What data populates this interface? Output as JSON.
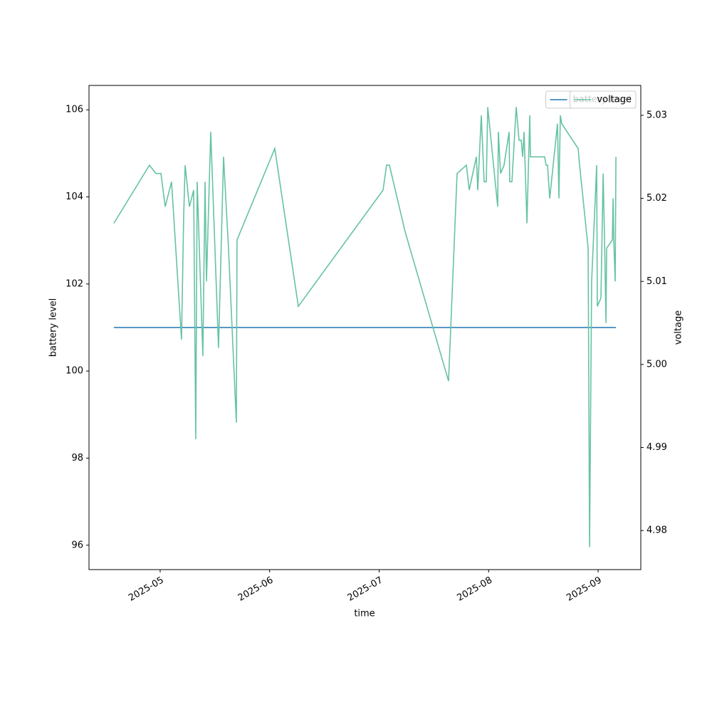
{
  "chart_data": {
    "type": "line",
    "x_label": "time",
    "y_label": "battery level",
    "y2_label": "voltage",
    "x": [
      4.577,
      4.902,
      4.961,
      5.007,
      5.046,
      5.104,
      5.195,
      5.215,
      5.228,
      5.267,
      5.306,
      5.325,
      5.338,
      5.39,
      5.41,
      5.423,
      5.462,
      5.533,
      5.579,
      5.624,
      5.696,
      5.702,
      6.047,
      6.262,
      7.036,
      7.068,
      7.094,
      7.237,
      7.634,
      7.712,
      7.797,
      7.823,
      7.888,
      7.901,
      7.933,
      7.959,
      7.979,
      7.992,
      8.083,
      8.089,
      8.109,
      8.141,
      8.187,
      8.193,
      8.213,
      8.252,
      8.278,
      8.298,
      8.311,
      8.324,
      8.35,
      8.376,
      8.382,
      8.512,
      8.525,
      8.538,
      8.558,
      8.629,
      8.642,
      8.655,
      8.668,
      8.818,
      8.831,
      8.909,
      8.922,
      8.941,
      8.987,
      8.993,
      9.026,
      9.046,
      9.059,
      9.072,
      9.078,
      9.13,
      9.137,
      9.143,
      9.156,
      9.163
    ],
    "xlim": [
      4.35,
      9.39
    ],
    "xticks": [
      {
        "value": 5,
        "label": "2025-05"
      },
      {
        "value": 6,
        "label": "2025-06"
      },
      {
        "value": 7,
        "label": "2025-07"
      },
      {
        "value": 8,
        "label": "2025-08"
      },
      {
        "value": 9,
        "label": "2025-09"
      }
    ],
    "ylim": [
      95.44,
      106.56
    ],
    "yticks": [
      96,
      98,
      100,
      102,
      104,
      106
    ],
    "y2lim": [
      4.9753,
      5.0336
    ],
    "y2ticks": [
      4.98,
      4.99,
      {
        "value": 5.0,
        "label": "5.00"
      },
      5.01,
      5.02,
      5.03
    ],
    "legend": "upper right",
    "series": [
      {
        "name": "battery level",
        "color": "#1f77b4",
        "values": [
          101,
          101,
          101,
          101,
          101,
          101,
          101,
          101,
          101,
          101,
          101,
          101,
          101,
          101,
          101,
          101,
          101,
          101,
          101,
          101,
          101,
          101,
          101,
          101,
          101,
          101,
          101,
          101,
          101,
          101,
          101,
          101,
          101,
          101,
          101,
          101,
          101,
          101,
          101,
          101,
          101,
          101,
          101,
          101,
          101,
          101,
          101,
          101,
          101,
          101,
          101,
          101,
          101,
          101,
          101,
          101,
          101,
          101,
          101,
          101,
          101,
          101,
          101,
          101,
          101,
          101,
          101,
          101,
          101,
          101,
          101,
          101,
          101,
          101,
          101,
          101,
          101,
          101
        ]
      },
      {
        "name": "voltage",
        "color": "#66c2a5",
        "axis": "y2",
        "values": [
          5.017,
          5.024,
          5.023,
          5.023,
          5.019,
          5.022,
          5.003,
          5.018,
          5.024,
          5.019,
          5.021,
          4.991,
          5.022,
          5.001,
          5.022,
          5.01,
          5.028,
          5.002,
          5.025,
          5.014,
          4.993,
          5.015,
          5.026,
          5.007,
          5.021,
          5.024,
          5.024,
          5.016,
          4.998,
          5.023,
          5.024,
          5.021,
          5.025,
          5.021,
          5.03,
          5.022,
          5.022,
          5.031,
          5.019,
          5.028,
          5.023,
          5.024,
          5.028,
          5.022,
          5.022,
          5.031,
          5.027,
          5.027,
          5.025,
          5.028,
          5.017,
          5.03,
          5.025,
          5.025,
          5.024,
          5.024,
          5.02,
          5.029,
          5.02,
          5.03,
          5.029,
          5.026,
          5.024,
          5.014,
          4.978,
          5.01,
          5.024,
          5.007,
          5.008,
          5.023,
          5.015,
          5.005,
          5.014,
          5.015,
          5.02,
          5.015,
          5.01,
          5.025
        ]
      }
    ]
  }
}
